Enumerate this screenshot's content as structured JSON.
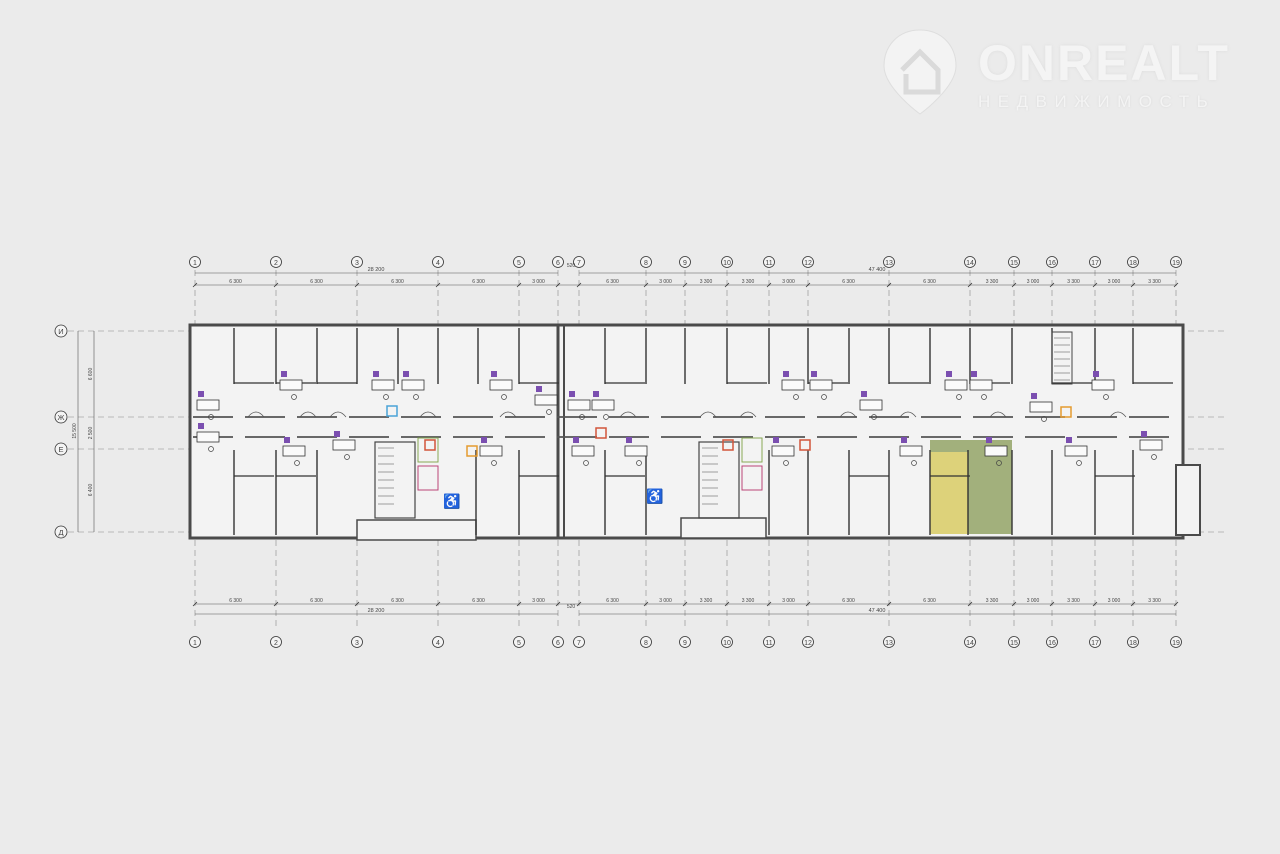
{
  "watermark": {
    "brand": "ONREALT",
    "subtitle": "НЕДВИЖИМОСТЬ"
  },
  "axes_columns": [
    "1",
    "2",
    "3",
    "4",
    "5",
    "6",
    "7",
    "8",
    "9",
    "10",
    "11",
    "12",
    "13",
    "14",
    "15",
    "16",
    "17",
    "18",
    "19"
  ],
  "axes_rows": [
    "И",
    "Ж",
    "Е",
    "Д"
  ],
  "dimensions": {
    "column_spacings": [
      "6 300",
      "6 300",
      "6 300",
      "6 300",
      "3 000",
      "6 300",
      "3 000",
      "3 300",
      "3 300",
      "3 000",
      "6 300",
      "6 300",
      "3 300",
      "3 000",
      "3 300",
      "3 000",
      "3 300"
    ],
    "section_gap": "520",
    "section_totals": [
      "28 200",
      "47 400"
    ],
    "row_spacings": [
      "6 600",
      "2 500",
      "6 400"
    ],
    "row_total": "15 500"
  },
  "highlight_colors": {
    "room_a": "#ddd27a",
    "room_b": "#a2b07c"
  }
}
